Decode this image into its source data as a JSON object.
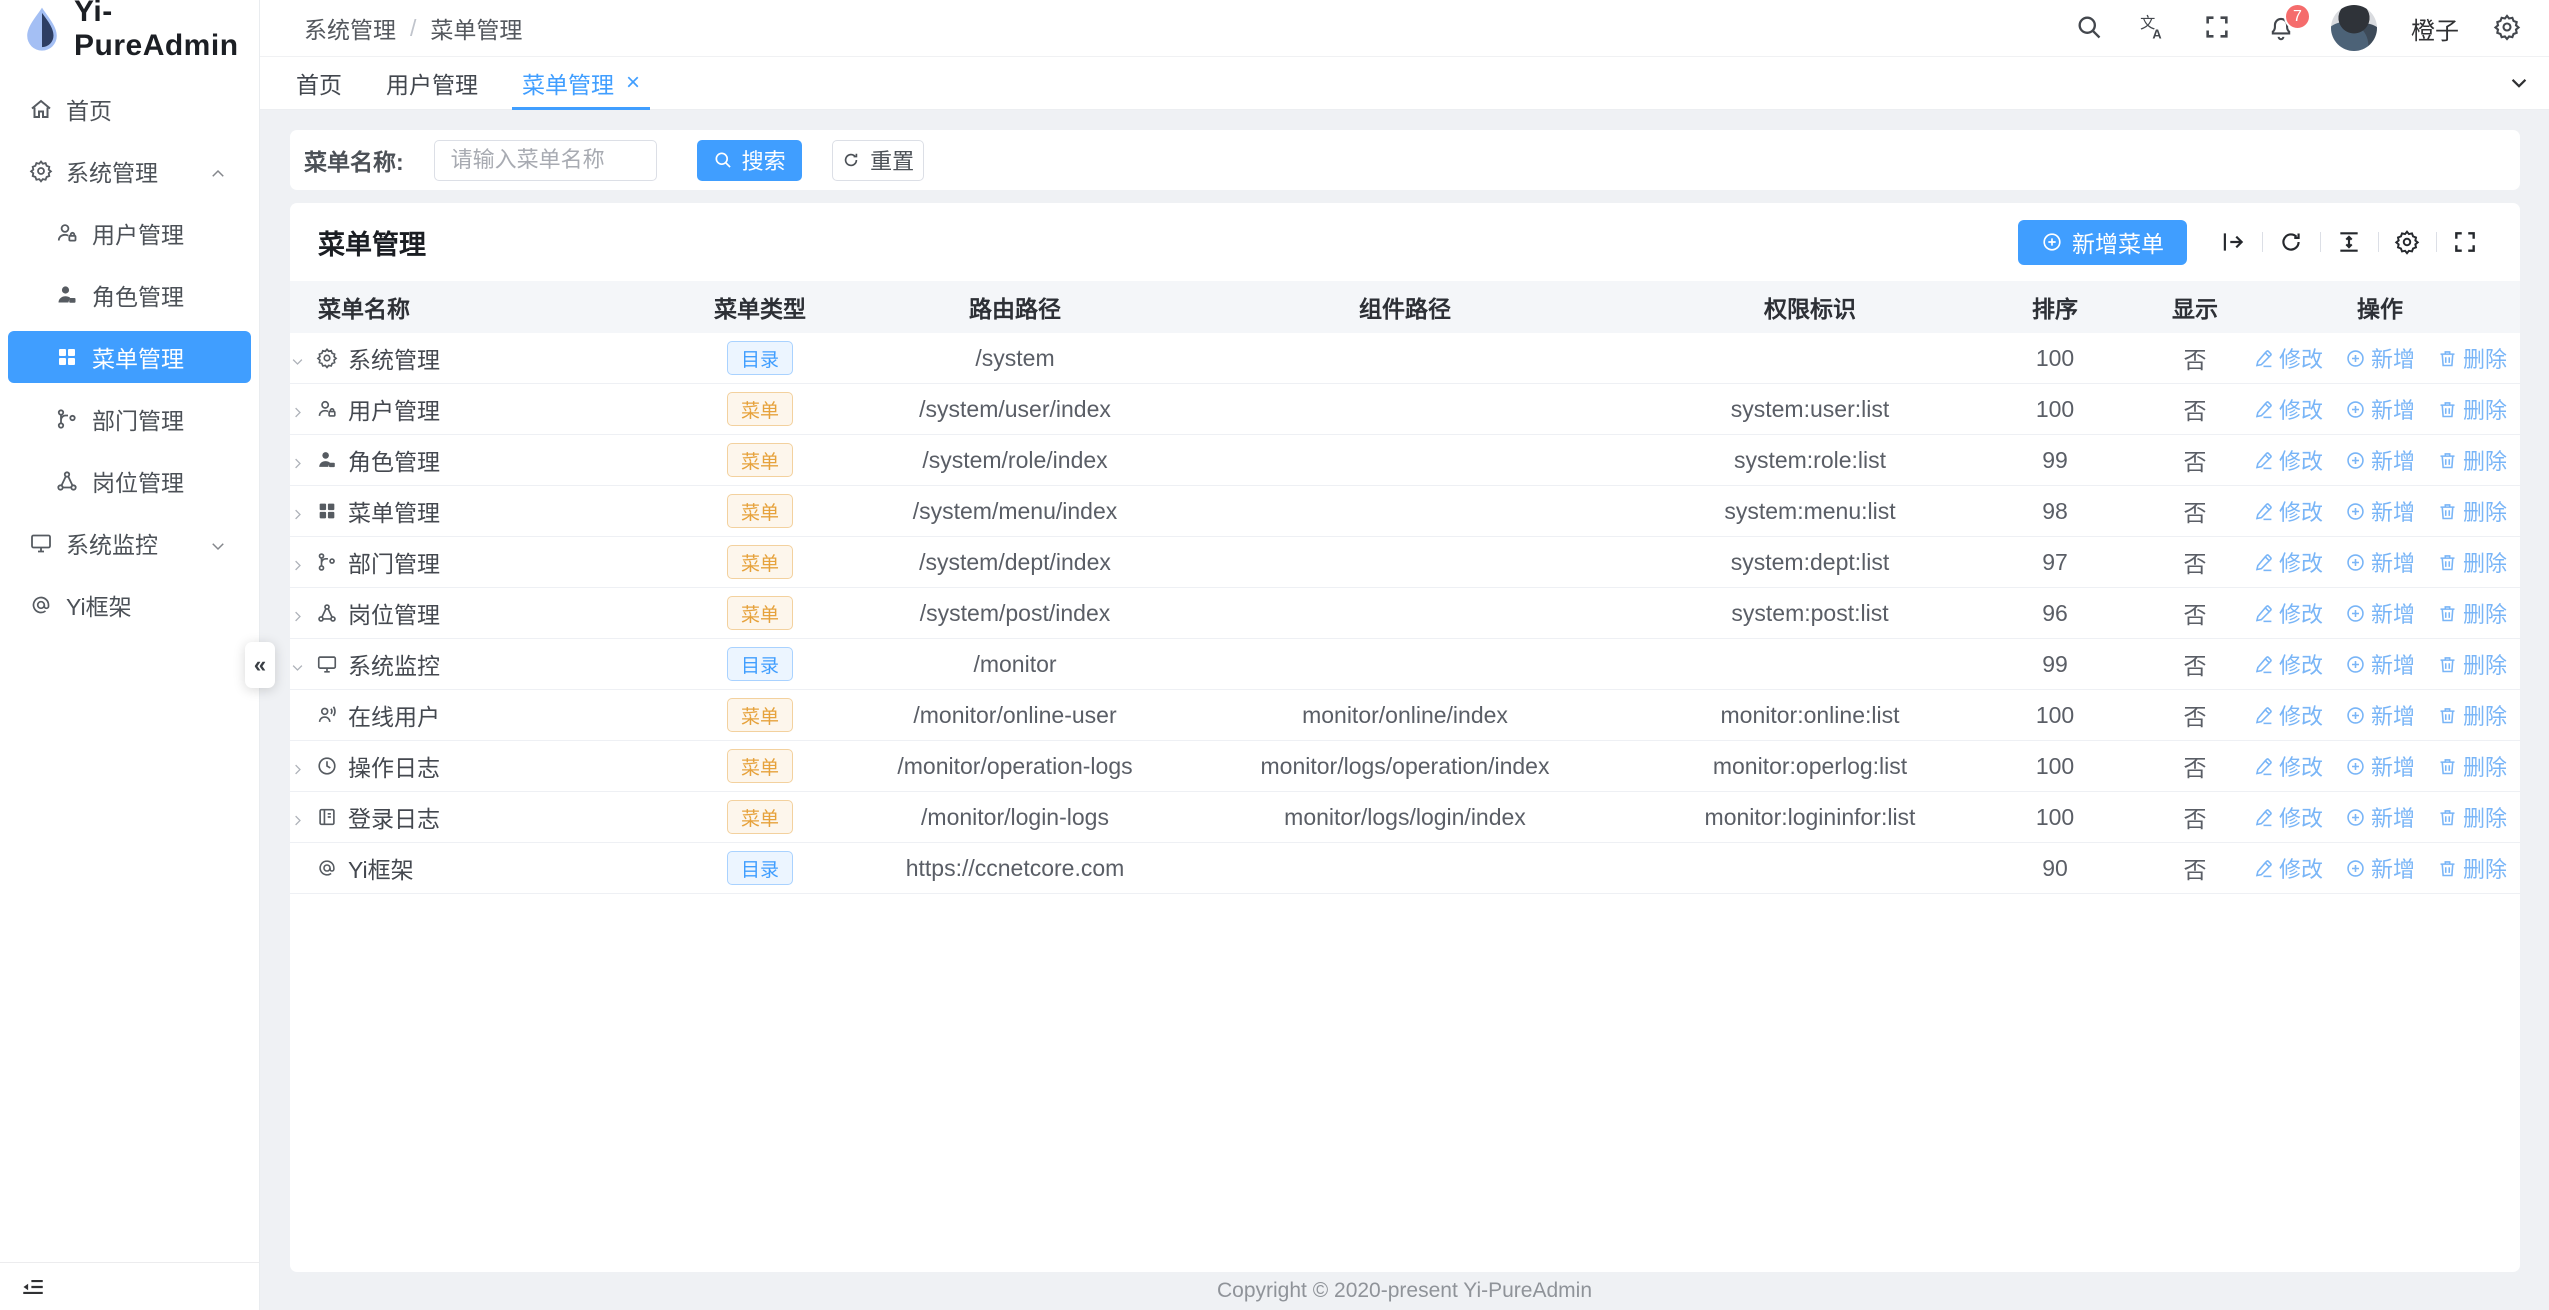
{
  "app": {
    "logo_text": "Yi-PureAdmin"
  },
  "colors": {
    "primary": "#409eff",
    "tag_dir": "#409eff",
    "tag_menu": "#e6a23c",
    "action_link": "#79b5f7",
    "badge": "#f56c6c"
  },
  "sidebar": {
    "items": [
      {
        "label": "首页",
        "icon": "home-icon",
        "level": 0
      },
      {
        "label": "系统管理",
        "icon": "gear-icon",
        "level": 0,
        "chevron": "up"
      },
      {
        "label": "用户管理",
        "icon": "user-icon",
        "level": 1
      },
      {
        "label": "角色管理",
        "icon": "role-icon",
        "level": 1
      },
      {
        "label": "菜单管理",
        "icon": "grid-icon",
        "level": 1,
        "active": true
      },
      {
        "label": "部门管理",
        "icon": "dept-icon",
        "level": 1
      },
      {
        "label": "岗位管理",
        "icon": "post-icon",
        "level": 1
      },
      {
        "label": "系统监控",
        "icon": "monitor-icon",
        "level": 0,
        "chevron": "down"
      },
      {
        "label": "Yi框架",
        "icon": "at-icon",
        "level": 0
      }
    ],
    "collapse_hint": "«"
  },
  "header": {
    "breadcrumb": {
      "first": "系统管理",
      "separator": "/",
      "current": "菜单管理"
    },
    "user_name": "橙子",
    "notification_count": "7"
  },
  "tabs": [
    {
      "label": "首页"
    },
    {
      "label": "用户管理"
    },
    {
      "label": "菜单管理",
      "active": true,
      "closable": true
    }
  ],
  "search": {
    "label": "菜单名称:",
    "placeholder": "请输入菜单名称",
    "search_label": "搜索",
    "reset_label": "重置"
  },
  "table": {
    "title": "菜单管理",
    "add_button": "新增菜单",
    "columns": [
      "菜单名称",
      "菜单类型",
      "路由路径",
      "组件路径",
      "权限标识",
      "排序",
      "显示",
      "操作"
    ],
    "actions": [
      {
        "label": "修改",
        "icon": "edit-icon"
      },
      {
        "label": "新增",
        "icon": "plus-icon"
      },
      {
        "label": "删除",
        "icon": "delete-icon"
      }
    ],
    "rows": [
      {
        "name": "系统管理",
        "icon": "gear-icon",
        "level": 0,
        "expand": "expanded",
        "type": "目录",
        "route": "/system",
        "component": "",
        "permission": "",
        "sort": "100",
        "visible": "否"
      },
      {
        "name": "用户管理",
        "icon": "user-icon",
        "level": 1,
        "expand": "collapsed",
        "type": "菜单",
        "route": "/system/user/index",
        "component": "",
        "permission": "system:user:list",
        "sort": "100",
        "visible": "否"
      },
      {
        "name": "角色管理",
        "icon": "role-icon",
        "level": 1,
        "expand": "collapsed",
        "type": "菜单",
        "route": "/system/role/index",
        "component": "",
        "permission": "system:role:list",
        "sort": "99",
        "visible": "否"
      },
      {
        "name": "菜单管理",
        "icon": "grid-icon",
        "level": 1,
        "expand": "collapsed",
        "type": "菜单",
        "route": "/system/menu/index",
        "component": "",
        "permission": "system:menu:list",
        "sort": "98",
        "visible": "否"
      },
      {
        "name": "部门管理",
        "icon": "dept-icon",
        "level": 1,
        "expand": "collapsed",
        "type": "菜单",
        "route": "/system/dept/index",
        "component": "",
        "permission": "system:dept:list",
        "sort": "97",
        "visible": "否"
      },
      {
        "name": "岗位管理",
        "icon": "post-icon",
        "level": 1,
        "expand": "collapsed",
        "type": "菜单",
        "route": "/system/post/index",
        "component": "",
        "permission": "system:post:list",
        "sort": "96",
        "visible": "否"
      },
      {
        "name": "系统监控",
        "icon": "monitor-icon",
        "level": 0,
        "expand": "expanded",
        "type": "目录",
        "route": "/monitor",
        "component": "",
        "permission": "",
        "sort": "99",
        "visible": "否"
      },
      {
        "name": "在线用户",
        "icon": "online-user-icon",
        "level": 1,
        "expand": "none",
        "type": "菜单",
        "route": "/monitor/online-user",
        "component": "monitor/online/index",
        "permission": "monitor:online:list",
        "sort": "100",
        "visible": "否"
      },
      {
        "name": "操作日志",
        "icon": "clock-icon",
        "level": 1,
        "expand": "collapsed",
        "type": "菜单",
        "route": "/monitor/operation-logs",
        "component": "monitor/logs/operation/index",
        "permission": "monitor:operlog:list",
        "sort": "100",
        "visible": "否"
      },
      {
        "name": "登录日志",
        "icon": "log-icon",
        "level": 1,
        "expand": "collapsed",
        "type": "菜单",
        "route": "/monitor/login-logs",
        "component": "monitor/logs/login/index",
        "permission": "monitor:logininfor:list",
        "sort": "100",
        "visible": "否"
      },
      {
        "name": "Yi框架",
        "icon": "at-icon",
        "level": 0,
        "expand": "none",
        "type": "目录",
        "route": "https://ccnetcore.com",
        "component": "",
        "permission": "",
        "sort": "90",
        "visible": "否"
      }
    ]
  },
  "footer": {
    "copyright": "Copyright © 2020-present Yi-PureAdmin"
  }
}
